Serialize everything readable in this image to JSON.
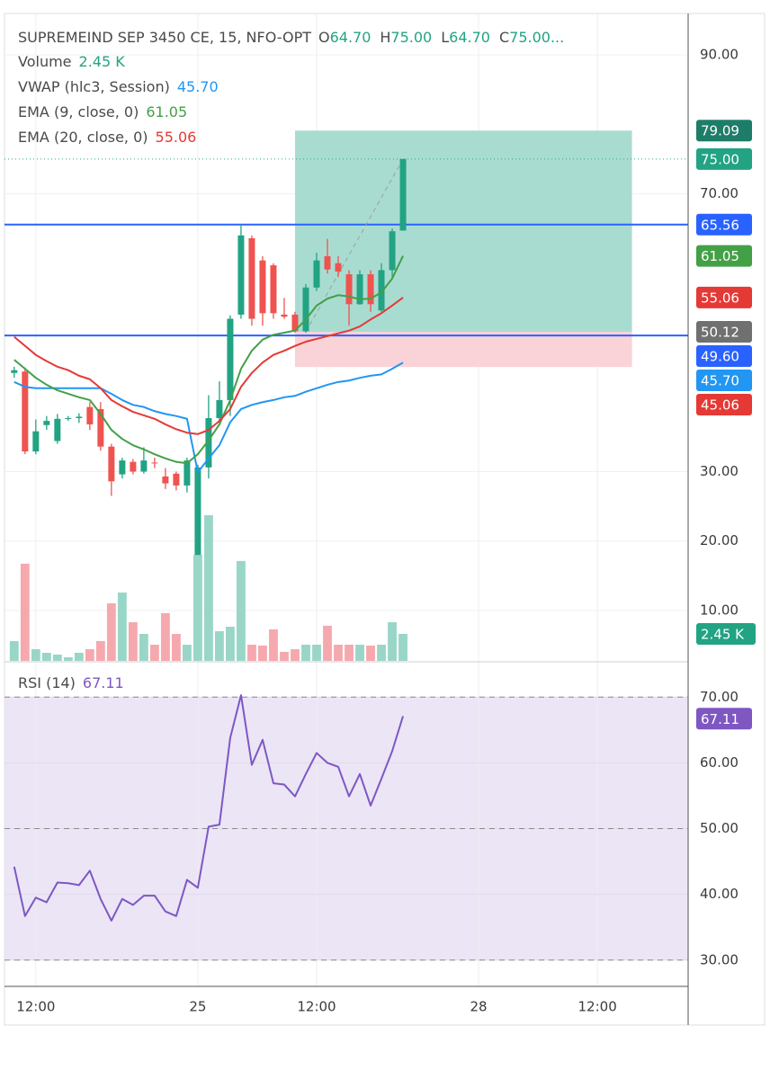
{
  "chart_data": [
    {
      "type": "candlestick",
      "symbol": "SUPREMEIND SEP 3450 CE, 15, NFO-OPT",
      "status": [
        {
          "key": "O",
          "value": "64.70"
        },
        {
          "key": "H",
          "value": "75.00"
        },
        {
          "key": "L",
          "value": "64.70"
        },
        {
          "key": "C",
          "value": "75.00..."
        }
      ],
      "x": [
        0,
        1,
        2,
        3,
        4,
        5,
        6,
        7,
        8,
        9,
        10,
        11,
        12,
        13,
        14,
        15,
        16,
        17,
        18,
        19,
        20,
        21,
        22,
        23,
        24,
        25,
        26,
        27,
        28,
        29,
        30,
        31,
        32,
        33,
        34,
        35,
        36
      ],
      "xlim": [
        -0.9,
        62.4
      ],
      "ylim": [
        2.75,
        95.95
      ],
      "open": [
        44.2,
        44.4,
        32.9,
        36.7,
        34.4,
        37.6,
        37.7,
        39.3,
        39,
        33.6,
        29.6,
        31.4,
        30,
        31.3,
        29.3,
        29.7,
        28,
        18,
        30.6,
        37.7,
        40.3,
        52.6,
        63.6,
        60.4,
        59.7,
        52.6,
        52.6,
        50.2,
        56.5,
        61,
        60,
        58.4,
        54.1,
        58.4,
        53.2,
        59,
        64.7
      ],
      "high": [
        45.1,
        45,
        37.5,
        38,
        38.3,
        38,
        38.4,
        40,
        40,
        34,
        32,
        31.8,
        33.5,
        32,
        30.5,
        30,
        32,
        31,
        41,
        43,
        52.5,
        65.6,
        64,
        61,
        60,
        55,
        53,
        57,
        61.5,
        63.5,
        61,
        59,
        59,
        59,
        60,
        65,
        75
      ],
      "low": [
        43.5,
        32.5,
        32.5,
        36,
        34,
        37.3,
        37,
        36,
        33,
        26.5,
        29,
        29.6,
        29.7,
        30.5,
        27.5,
        27.3,
        27,
        18,
        29,
        37,
        38,
        52,
        51,
        51,
        52,
        52,
        50,
        50,
        56,
        58.5,
        58,
        51,
        54,
        53,
        53,
        58,
        64.7
      ],
      "close": [
        44.6,
        32.9,
        35.8,
        37.3,
        37.6,
        37.7,
        37.9,
        36.8,
        33.6,
        28.6,
        31.6,
        30,
        31.6,
        31.2,
        28.3,
        28,
        31.6,
        30.6,
        37.7,
        40.3,
        52,
        64,
        52,
        52.8,
        52.8,
        52.3,
        50.2,
        56.5,
        60.4,
        59.1,
        58.8,
        54.1,
        58.4,
        54.1,
        59,
        64.6,
        75
      ],
      "up_color": "#22a383",
      "down_color": "#ef5350",
      "volume": {
        "name": "Volume",
        "legend_value": "2.45 K",
        "color": "#26a69a",
        "values": [
          1800,
          8820,
          1060,
          735,
          570,
          330,
          735,
          1060,
          1800,
          5230,
          6210,
          3510,
          2450,
          1470,
          4330,
          2450,
          1470,
          9640,
          13230,
          2700,
          3100,
          9070,
          1470,
          1390,
          2860,
          820,
          1060,
          1470,
          1470,
          3190,
          1470,
          1470,
          1470,
          1390,
          1470,
          3510,
          2450
        ],
        "ylim": [
          0,
          20000
        ],
        "up_color": "#9ad6c8",
        "down_color": "#f5a9ae"
      },
      "series": [
        {
          "name": "VWAP (hlc3, Session)",
          "legend_value": "45.70",
          "color": "#2196f3",
          "values": [
            42.9,
            42.2,
            42,
            42,
            42,
            42,
            42,
            42,
            42,
            41.2,
            40.3,
            39.6,
            39.3,
            38.7,
            38.3,
            38,
            37.6,
            29.9,
            31.9,
            33.8,
            37.1,
            39,
            39.6,
            40,
            40.3,
            40.7,
            40.9,
            41.5,
            42,
            42.5,
            42.9,
            43.1,
            43.5,
            43.8,
            44,
            44.8,
            45.7
          ]
        },
        {
          "name": "EMA (9, close, 0)",
          "legend_value": "61.05",
          "color": "#43a047",
          "values": [
            46.1,
            44.8,
            43.5,
            42.5,
            41.7,
            41.2,
            40.7,
            40.3,
            38.3,
            36,
            34.7,
            33.8,
            33.2,
            32.5,
            31.9,
            31.4,
            31.2,
            32.5,
            34.5,
            36.8,
            40.3,
            44.8,
            47.4,
            49,
            49.7,
            50,
            50.3,
            51.9,
            53.9,
            54.9,
            55.4,
            55.2,
            54.8,
            54.9,
            55.8,
            57.8,
            61.05
          ]
        },
        {
          "name": "EMA (20, close, 0)",
          "legend_value": "55.06",
          "color": "#e53935",
          "values": [
            49.4,
            48.1,
            46.8,
            45.9,
            45.1,
            44.6,
            43.8,
            43.3,
            42,
            40.3,
            39.4,
            38.6,
            38.1,
            37.6,
            36.8,
            36.1,
            35.6,
            35.4,
            36,
            37.3,
            39,
            42.2,
            44.2,
            45.7,
            46.8,
            47.4,
            48.1,
            48.7,
            49.1,
            49.5,
            49.9,
            50.3,
            50.9,
            51.9,
            52.8,
            53.9,
            55.06
          ]
        }
      ],
      "hlines": [
        {
          "value": 65.56,
          "color": "#2962ff",
          "style": "solid"
        },
        {
          "value": 49.6,
          "color": "#2962ff",
          "style": "solid"
        },
        {
          "value": 75,
          "color": "#26a69a",
          "style": "dotted"
        }
      ],
      "position": {
        "x": [
          26,
          57.2
        ],
        "target": 79.09,
        "entry": 50.12,
        "stop": 45.06,
        "profit_color": "#a9dcd1",
        "loss_color": "#f9d3d7"
      },
      "trend": {
        "x": [
          27,
          36
        ],
        "y": [
          50.12,
          75
        ],
        "color": "#9e9e9e"
      },
      "grid": true,
      "yticks": [
        {
          "value": 90,
          "label": "90.00"
        },
        {
          "value": 70,
          "label": "70.00"
        },
        {
          "value": 30,
          "label": "30.00"
        },
        {
          "value": 20,
          "label": "20.00"
        },
        {
          "value": 10,
          "label": "10.00"
        }
      ],
      "xticks": [
        {
          "value": 2,
          "label": "12:00"
        },
        {
          "value": 17,
          "label": "25"
        },
        {
          "value": 28,
          "label": "12:00"
        },
        {
          "value": 43,
          "label": "28"
        },
        {
          "value": 54,
          "label": "12:00"
        }
      ],
      "price_tags": [
        {
          "value": 79.09,
          "label": "79.09",
          "color": "#1e7d68"
        },
        {
          "value": 75,
          "label": "75.00",
          "color": "#22a383"
        },
        {
          "value": 65.56,
          "label": "65.56",
          "color": "#2962ff"
        },
        {
          "value": 61.05,
          "label": "61.05",
          "color": "#43a047"
        },
        {
          "value": 55.06,
          "label": "55.06",
          "color": "#e53935"
        },
        {
          "value": 50.12,
          "label": "50.12",
          "color": "#707070"
        },
        {
          "value": 49.6,
          "label": "49.60",
          "color": "#2962ff"
        },
        {
          "value": 45.7,
          "label": "45.70",
          "color": "#2196f3"
        },
        {
          "value": 45.06,
          "label": "45.06",
          "color": "#e53935"
        }
      ],
      "volume_tag": {
        "value": 2450,
        "label": "2.45 K",
        "color": "#22a383"
      }
    },
    {
      "type": "line",
      "series": [
        {
          "name": "RSI (14)",
          "legend_value": "67.11",
          "color": "#7e57c2",
          "values": [
            44.2,
            36.7,
            39.5,
            38.8,
            41.8,
            41.7,
            41.4,
            43.6,
            39.3,
            36,
            39.3,
            38.4,
            39.8,
            39.8,
            37.4,
            36.7,
            42.2,
            41,
            50.3,
            50.6,
            63.8,
            70.3,
            59.7,
            63.5,
            56.9,
            56.7,
            54.9,
            58.3,
            61.5,
            60,
            59.4,
            54.9,
            58.3,
            53.5,
            57.6,
            61.8,
            67.11
          ]
        }
      ],
      "ylim": [
        26,
        75.1
      ],
      "yticks": [
        {
          "value": 70,
          "label": "70.00"
        },
        {
          "value": 60,
          "label": "60.00"
        },
        {
          "value": 50,
          "label": "50.00"
        },
        {
          "value": 40,
          "label": "40.00"
        },
        {
          "value": 30,
          "label": "30.00"
        }
      ],
      "levels": [
        70,
        50,
        30
      ],
      "band": [
        30,
        70
      ],
      "band_color": "#ebe5f6",
      "grid": true,
      "tag": {
        "value": 67.11,
        "label": "67.11",
        "color": "#7e57c2"
      }
    }
  ]
}
